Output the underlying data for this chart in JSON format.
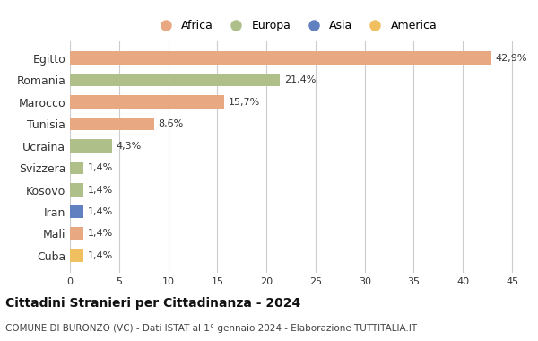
{
  "countries": [
    "Egitto",
    "Romania",
    "Marocco",
    "Tunisia",
    "Ucraina",
    "Svizzera",
    "Kosovo",
    "Iran",
    "Mali",
    "Cuba"
  ],
  "values": [
    42.9,
    21.4,
    15.7,
    8.6,
    4.3,
    1.4,
    1.4,
    1.4,
    1.4,
    1.4
  ],
  "labels": [
    "42,9%",
    "21,4%",
    "15,7%",
    "8,6%",
    "4,3%",
    "1,4%",
    "1,4%",
    "1,4%",
    "1,4%",
    "1,4%"
  ],
  "colors": [
    "#E8A882",
    "#AEBF8A",
    "#E8A882",
    "#E8A882",
    "#AEBF8A",
    "#AEBF8A",
    "#AEBF8A",
    "#6080C0",
    "#E8A882",
    "#F0C060"
  ],
  "legend_labels": [
    "Africa",
    "Europa",
    "Asia",
    "America"
  ],
  "legend_colors": [
    "#E8A882",
    "#AEBF8A",
    "#6080C0",
    "#F0C060"
  ],
  "title": "Cittadini Stranieri per Cittadinanza - 2024",
  "subtitle": "COMUNE DI BURONZO (VC) - Dati ISTAT al 1° gennaio 2024 - Elaborazione TUTTITALIA.IT",
  "xlim": [
    0,
    46
  ],
  "xticks": [
    0,
    5,
    10,
    15,
    20,
    25,
    30,
    35,
    40,
    45
  ],
  "bg_color": "#ffffff",
  "grid_color": "#cccccc"
}
